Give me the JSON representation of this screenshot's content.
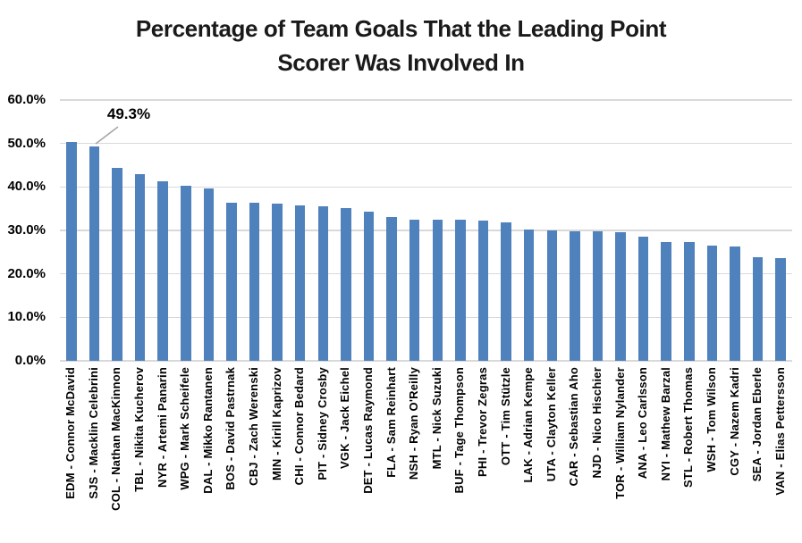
{
  "title": {
    "line1": "Percentage of Team Goals That the Leading Point",
    "line2": "Scorer Was Involved In"
  },
  "annotation": {
    "label": "49.3%"
  },
  "colors": {
    "bar": "#4F81BD",
    "gridline": "#D9D9D9",
    "leader_line": "#A6A6A6",
    "title_text": "#1A1A1A",
    "axis_text": "#000000",
    "background": "#FFFFFF"
  },
  "chart_data": {
    "type": "bar",
    "title": "Percentage of Team Goals That the Leading Point Scorer Was Involved In",
    "xlabel": "",
    "ylabel": "",
    "ylim": [
      0,
      60
    ],
    "y_tick_step": 10,
    "y_ticks": [
      "0.0%",
      "10.0%",
      "20.0%",
      "30.0%",
      "40.0%",
      "50.0%",
      "60.0%"
    ],
    "grid": true,
    "legend": false,
    "value_unit": "percent",
    "annotation": {
      "text": "49.3%",
      "category": "SJS - Macklin Celebrini",
      "value": 49.3
    },
    "categories": [
      "EDM - Connor McDavid",
      "SJS - Macklin Celebrini",
      "COL - Nathan MacKinnon",
      "TBL - Nikita Kucherov",
      "NYR - Artemi Panarin",
      "WPG - Mark Scheifele",
      "DAL - Mikko Rantanen",
      "BOS - David Pastrnak",
      "CBJ - Zach Werenski",
      "MIN - Kirill Kaprizov",
      "CHI - Connor Bedard",
      "PIT - Sidney Crosby",
      "VGK - Jack Eichel",
      "DET - Lucas Raymond",
      "FLA - Sam Reinhart",
      "NSH - Ryan O'Reilly",
      "MTL - Nick Suzuki",
      "BUF - Tage Thompson",
      "PHI - Trevor Zegras",
      "OTT - Tim Stützle",
      "LAK - Adrian Kempe",
      "UTA - Clayton Keller",
      "CAR - Sebastian Aho",
      "NJD - Nico Hischier",
      "TOR - William Nylander",
      "ANA - Leo Carlsson",
      "NYI - Mathew Barzal",
      "STL - Robert Thomas",
      "WSH - Tom Wilson",
      "CGY - Nazem Kadri",
      "SEA - Jordan Eberle",
      "VAN - Elias Pettersson"
    ],
    "values": [
      50.3,
      49.3,
      44.4,
      43.0,
      41.4,
      40.3,
      39.7,
      36.4,
      36.4,
      36.1,
      35.8,
      35.5,
      35.2,
      34.3,
      33.0,
      32.5,
      32.5,
      32.4,
      32.2,
      31.8,
      30.2,
      30.0,
      29.8,
      29.8,
      29.5,
      28.5,
      27.4,
      27.4,
      26.6,
      26.4,
      23.8,
      23.6
    ]
  }
}
